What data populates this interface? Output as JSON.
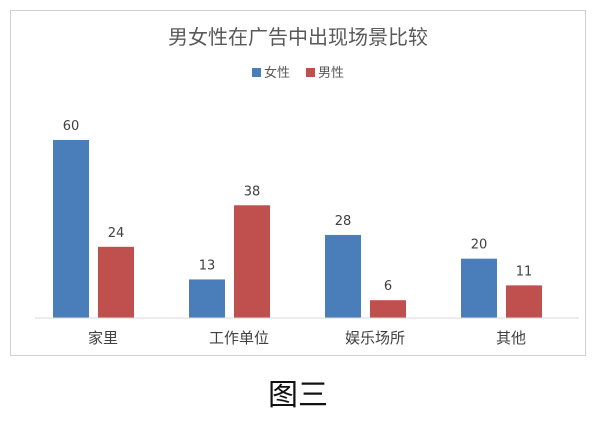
{
  "chart_data": {
    "type": "bar",
    "title": "男女性在广告中出现场景比较",
    "categories": [
      "家里",
      "工作单位",
      "娱乐场所",
      "其他"
    ],
    "series": [
      {
        "name": "女性",
        "color": "#4a7ebb",
        "values": [
          60,
          13,
          28,
          20
        ]
      },
      {
        "name": "男性",
        "color": "#c0504d",
        "values": [
          24,
          38,
          6,
          11
        ]
      }
    ],
    "ylim": [
      0,
      60
    ],
    "legend_position": "top-center",
    "grid": false,
    "data_labels": true
  },
  "caption": "图三"
}
